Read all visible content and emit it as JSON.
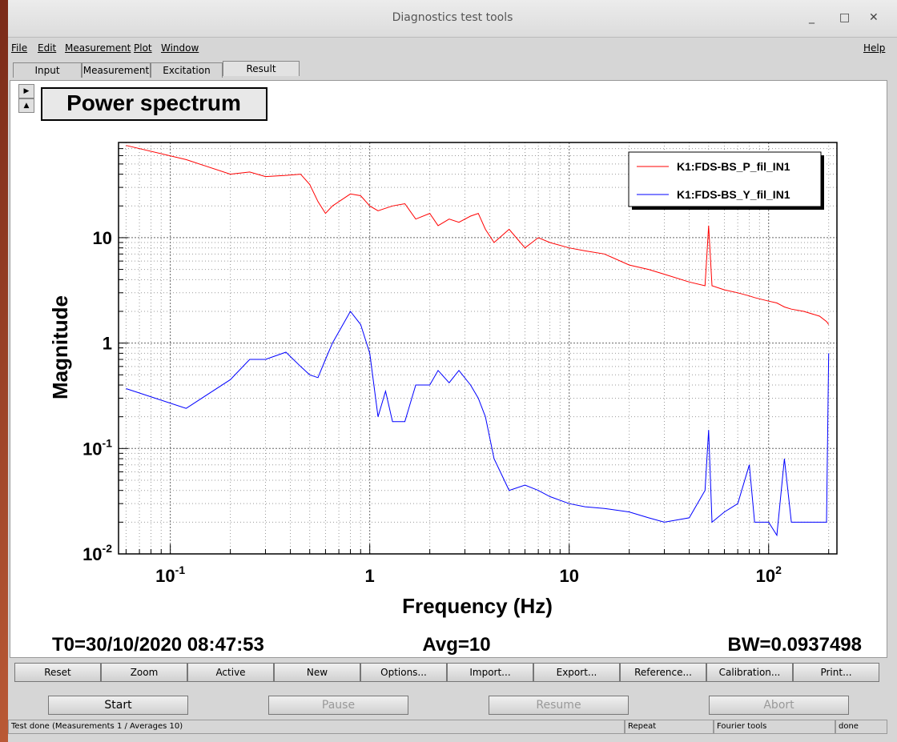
{
  "window": {
    "title": "Diagnostics test tools"
  },
  "menu": [
    "File",
    "Edit",
    "Measurement",
    "Plot",
    "Window"
  ],
  "help": "Help",
  "tabs": [
    "Input",
    "Measurement",
    "Excitation",
    "Result"
  ],
  "chart_data": {
    "type": "line",
    "title": "Power spectrum",
    "x_label": "Frequency (Hz)",
    "y_label": "Magnitude",
    "x": [
      0.06,
      0.12,
      0.2,
      0.25,
      0.3,
      0.38,
      0.45,
      0.5,
      0.55,
      0.6,
      0.65,
      0.8,
      0.9,
      1,
      1.1,
      1.2,
      1.3,
      1.5,
      1.7,
      2,
      2.2,
      2.5,
      2.8,
      3.2,
      3.5,
      3.8,
      4.2,
      5,
      6,
      7,
      8,
      10,
      12,
      15,
      20,
      25,
      30,
      40,
      48,
      50,
      52,
      60,
      70,
      80,
      85,
      100,
      110,
      120,
      130,
      150,
      180,
      195,
      200
    ],
    "series": [
      {
        "name": "K1:FDS-BS_P_fil_IN1",
        "color": "#ff0000",
        "values": [
          75,
          55,
          40,
          42,
          38,
          39,
          40,
          32,
          22,
          17,
          20,
          26,
          25,
          20,
          18,
          19,
          20,
          21,
          15,
          17,
          13,
          15,
          14,
          16,
          17,
          12,
          9,
          12,
          8,
          10,
          9,
          8,
          7.5,
          7,
          5.5,
          5,
          4.5,
          3.8,
          3.5,
          13,
          3.5,
          3.2,
          3,
          2.8,
          2.7,
          2.5,
          2.4,
          2.2,
          2.1,
          2,
          1.8,
          1.6,
          1.5
        ]
      },
      {
        "name": "K1:FDS-BS_Y_fil_IN1",
        "color": "#0000ff",
        "values": [
          0.37,
          0.24,
          0.45,
          0.7,
          0.7,
          0.82,
          0.6,
          0.5,
          0.47,
          0.7,
          1.0,
          2.0,
          1.5,
          0.8,
          0.2,
          0.35,
          0.18,
          0.18,
          0.4,
          0.4,
          0.55,
          0.42,
          0.55,
          0.4,
          0.3,
          0.2,
          0.08,
          0.04,
          0.045,
          0.04,
          0.035,
          0.03,
          0.028,
          0.027,
          0.025,
          0.022,
          0.02,
          0.022,
          0.04,
          0.15,
          0.02,
          0.025,
          0.03,
          0.07,
          0.02,
          0.02,
          0.015,
          0.08,
          0.02,
          0.02,
          0.02,
          0.02,
          0.8
        ]
      }
    ],
    "xlog": true,
    "ylog": true,
    "xlim": [
      0.055,
      220
    ],
    "ylim": [
      0.01,
      80
    ],
    "xticks": [
      {
        "value": 0.1,
        "label": "10",
        "sup": "-1"
      },
      1,
      10,
      {
        "value": 100,
        "label": "10",
        "sup": "2"
      }
    ],
    "yticks": [
      {
        "value": 0.01,
        "label": "10",
        "sup": "-2"
      },
      {
        "value": 0.1,
        "label": "10",
        "sup": "-1"
      },
      1,
      10
    ],
    "grid": true,
    "minor_grid": true,
    "legend": "upper right"
  },
  "info": {
    "t0": "T0=30/10/2020 08:47:53",
    "avg": "Avg=10",
    "bw": "BW=0.0937498"
  },
  "buttons": [
    "Reset",
    "Zoom",
    "Active",
    "New",
    "Options...",
    "Import...",
    "Export...",
    "Reference...",
    "Calibration...",
    "Print..."
  ],
  "controls": [
    "Start",
    "Pause",
    "Resume",
    "Abort"
  ],
  "status": [
    "Test done (Measurements 1 / Averages 10)",
    "Repeat",
    "Fourier tools",
    "done"
  ]
}
